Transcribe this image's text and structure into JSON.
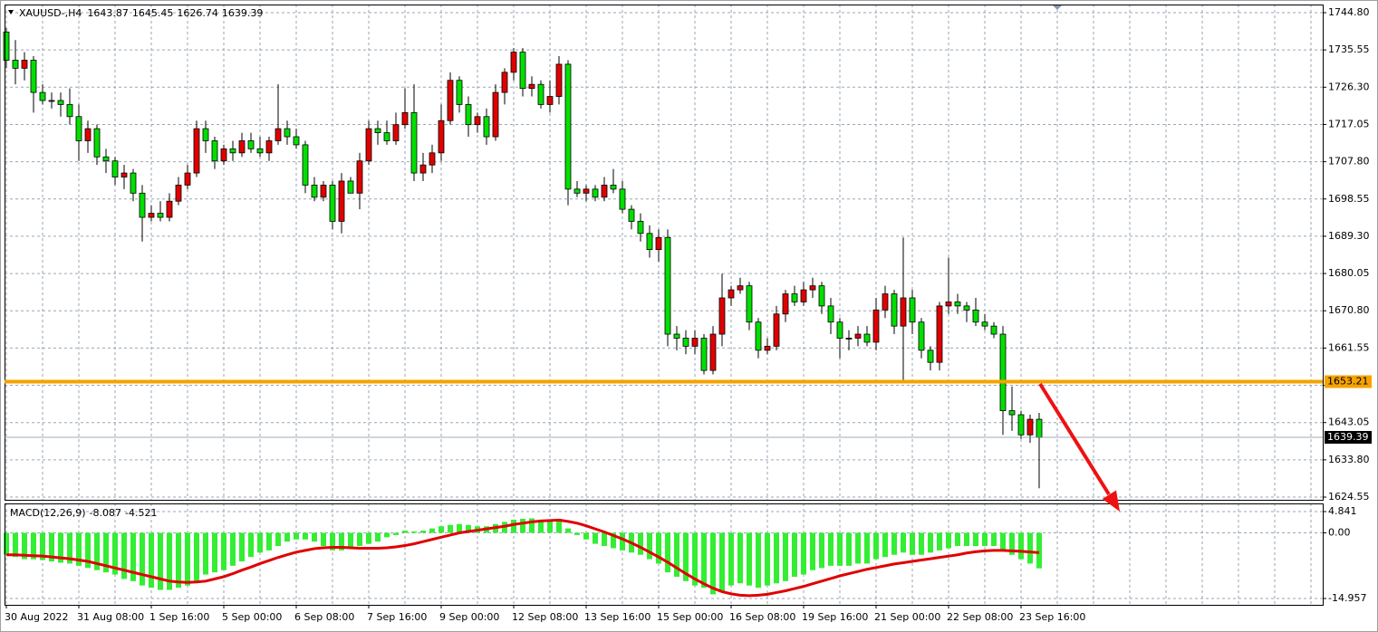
{
  "chart_data": [
    {
      "type": "candlestick",
      "title": "XAUUSD-,H4",
      "categories": [
        "30 Aug 2022",
        null,
        null,
        null,
        null,
        null,
        null,
        null,
        "31 Aug 08:00",
        null,
        null,
        null,
        null,
        null,
        null,
        null,
        "1 Sep 16:00",
        null,
        null,
        null,
        null,
        null,
        null,
        null,
        "5 Sep 00:00",
        null,
        null,
        null,
        null,
        null,
        null,
        null,
        "6 Sep 08:00",
        null,
        null,
        null,
        null,
        null,
        null,
        null,
        "7 Sep 16:00",
        null,
        null,
        null,
        null,
        null,
        null,
        null,
        "9 Sep 00:00",
        null,
        null,
        null,
        null,
        null,
        null,
        null,
        "12 Sep 08:00",
        null,
        null,
        null,
        null,
        null,
        null,
        null,
        "13 Sep 16:00",
        null,
        null,
        null,
        null,
        null,
        null,
        null,
        "15 Sep 00:00",
        null,
        null,
        null,
        null,
        null,
        null,
        null,
        "16 Sep 08:00",
        null,
        null,
        null,
        null,
        null,
        null,
        null,
        "19 Sep 16:00",
        null,
        null,
        null,
        null,
        null,
        null,
        null,
        "21 Sep 00:00",
        null,
        null,
        null,
        null,
        null,
        null,
        null,
        "22 Sep 08:00",
        null,
        null,
        null,
        null,
        null,
        null,
        null,
        "23 Sep 16:00",
        null,
        null
      ],
      "open": [
        1740,
        1733,
        1731,
        1733,
        1725,
        1723,
        1723,
        1722,
        1719,
        1713,
        1716,
        1709,
        1708,
        1704,
        1705,
        1700,
        1694,
        1695,
        1694,
        1698,
        1702,
        1705,
        1716,
        1713,
        1708,
        1711,
        1710,
        1713,
        1711,
        1710,
        1713,
        1716,
        1714,
        1712,
        1702,
        1699,
        1702,
        1693,
        1703,
        1700,
        1708,
        1716,
        1715,
        1713,
        1717,
        1720,
        1705,
        1707,
        1710,
        1718,
        1728,
        1722,
        1717,
        1719,
        1714,
        1725,
        1730,
        1735,
        1726,
        1727,
        1722,
        1724,
        1732,
        1701,
        1700,
        1701,
        1699,
        1702,
        1701,
        1696,
        1693,
        1690,
        1686,
        1689,
        1665,
        1664,
        1662,
        1664,
        1656,
        1665,
        1674,
        1676,
        1677,
        1668,
        1661,
        1662,
        1670,
        1675,
        1673,
        1676,
        1677,
        1672,
        1668,
        1664,
        1664,
        1665,
        1663,
        1671,
        1675,
        1667,
        1674,
        1668,
        1661,
        1658,
        1672,
        1673,
        1672,
        1671,
        1668,
        1667,
        1665,
        1646,
        1645,
        1640,
        1643.87
      ],
      "high": [
        1741,
        1738,
        1735,
        1734,
        1727,
        1725,
        1725,
        1726,
        1722,
        1718,
        1717,
        1711,
        1709,
        1707,
        1706,
        1702,
        1697,
        1698,
        1700,
        1704,
        1707,
        1718,
        1718,
        1714,
        1712,
        1713,
        1715,
        1715,
        1714,
        1714,
        1727,
        1718,
        1716,
        1713,
        1704,
        1703,
        1703,
        1705,
        1704,
        1710,
        1718,
        1718,
        1718,
        1720,
        1726,
        1727,
        1710,
        1712,
        1722,
        1730,
        1729,
        1724,
        1720,
        1721,
        1727,
        1731,
        1736,
        1736,
        1729,
        1728,
        1728,
        1734,
        1733,
        1703,
        1702,
        1702,
        1704,
        1706,
        1703,
        1697,
        1695,
        1692,
        1691,
        1691,
        1667,
        1666,
        1666,
        1665,
        1667,
        1680,
        1677,
        1679,
        1678,
        1669,
        1664,
        1672,
        1676,
        1677,
        1678,
        1679,
        1678,
        1674,
        1669,
        1666,
        1667,
        1667,
        1674,
        1677,
        1676,
        1689,
        1676,
        1669,
        1662,
        1673,
        1684,
        1675,
        1673,
        1674,
        1670,
        1668,
        1667,
        1652,
        1646,
        1645,
        1645.45
      ],
      "low": [
        1731,
        1727,
        1728,
        1720,
        1722,
        1721,
        1719,
        1717,
        1708,
        1710,
        1707,
        1705,
        1702,
        1701,
        1698,
        1688,
        1693,
        1693,
        1693,
        1697,
        1701,
        1704,
        1710,
        1706,
        1707,
        1708,
        1709,
        1710,
        1709,
        1708,
        1712,
        1712,
        1711,
        1700,
        1698,
        1698,
        1691,
        1690,
        1700,
        1696,
        1707,
        1712,
        1712,
        1712,
        1716,
        1703,
        1703,
        1705,
        1708,
        1717,
        1720,
        1714,
        1715,
        1712,
        1713,
        1722,
        1728,
        1724,
        1724,
        1721,
        1720,
        1722,
        1697,
        1699,
        1698,
        1698,
        1698,
        1700,
        1695,
        1691,
        1688,
        1684,
        1683,
        1662,
        1661,
        1660,
        1660,
        1655,
        1655,
        1662,
        1672,
        1675,
        1666,
        1659,
        1660,
        1661,
        1668,
        1672,
        1672,
        1674,
        1670,
        1665,
        1659,
        1661,
        1662,
        1662,
        1661,
        1669,
        1665,
        1653,
        1665,
        1659,
        1656,
        1656,
        1670,
        1670,
        1668,
        1667,
        1666,
        1664,
        1640,
        1641,
        1639,
        1638,
        1626.74
      ],
      "close": [
        1733,
        1731,
        1733,
        1725,
        1723,
        1723,
        1722,
        1719,
        1713,
        1716,
        1709,
        1708,
        1704,
        1705,
        1700,
        1694,
        1695,
        1694,
        1698,
        1702,
        1705,
        1716,
        1713,
        1708,
        1711,
        1710,
        1713,
        1711,
        1710,
        1713,
        1716,
        1714,
        1712,
        1702,
        1699,
        1702,
        1693,
        1703,
        1700,
        1708,
        1716,
        1715,
        1713,
        1717,
        1720,
        1705,
        1707,
        1710,
        1718,
        1728,
        1722,
        1717,
        1719,
        1714,
        1725,
        1730,
        1735,
        1726,
        1727,
        1722,
        1724,
        1732,
        1701,
        1700,
        1701,
        1699,
        1702,
        1701,
        1696,
        1693,
        1690,
        1686,
        1689,
        1665,
        1664,
        1662,
        1664,
        1656,
        1665,
        1674,
        1676,
        1677,
        1668,
        1661,
        1662,
        1670,
        1675,
        1673,
        1676,
        1677,
        1672,
        1668,
        1664,
        1664,
        1665,
        1663,
        1671,
        1675,
        1667,
        1674,
        1668,
        1661,
        1658,
        1672,
        1673,
        1672,
        1671,
        1668,
        1667,
        1665,
        1646,
        1645,
        1640,
        1643.87,
        1639.39
      ],
      "up_color": "#e00000",
      "down_color": "#00e000",
      "ylim": [
        1623.88,
        1746.82
      ],
      "yticks": [
        {
          "value": 1744.8,
          "label": "1744.80"
        },
        1735.55,
        {
          "value": 1726.3,
          "label": "1726.30"
        },
        1717.05,
        {
          "value": 1707.8,
          "label": "1707.80"
        },
        1698.55,
        {
          "value": 1689.3,
          "label": "1689.30"
        },
        1680.05,
        {
          "value": 1670.8,
          "label": "1670.80"
        },
        1661.55,
        {
          "value": 1652.3,
          "label": "1652.30"
        },
        1643.05,
        {
          "value": 1633.8,
          "label": "1633.80"
        },
        1624.55
      ],
      "grid": true,
      "hline": 1653.21,
      "hline_color": "#f5a300"
    },
    {
      "type": "macd",
      "title": "MACD(12,26,9)",
      "histogram": {
        "color": "#33ee33",
        "values": [
          -5,
          -5.5,
          -6,
          -6,
          -6.2,
          -6.5,
          -6.8,
          -7,
          -7.5,
          -8,
          -8.5,
          -9,
          -9.5,
          -10.5,
          -11,
          -12,
          -12.5,
          -13,
          -13,
          -12.5,
          -12,
          -11,
          -9.5,
          -9,
          -8.5,
          -7.5,
          -6.5,
          -5.5,
          -4.5,
          -4,
          -3,
          -2,
          -1.5,
          -1.5,
          -2,
          -3,
          -4,
          -4,
          -3.5,
          -3,
          -2.5,
          -2,
          -1,
          -0.5,
          0.5,
          0.3,
          0.5,
          1,
          1.5,
          1.8,
          2,
          1.8,
          1.5,
          1.5,
          2,
          2.5,
          3,
          3.2,
          3.3,
          3,
          3,
          3.2,
          1,
          -0.5,
          -1.5,
          -2.5,
          -3,
          -3.5,
          -4,
          -4.5,
          -5,
          -6,
          -7,
          -9,
          -10,
          -11,
          -12,
          -12.5,
          -14,
          -13.5,
          -12,
          -11.5,
          -12,
          -12.5,
          -12,
          -11.5,
          -11,
          -10,
          -9.5,
          -8.5,
          -8,
          -7.5,
          -7.5,
          -7.5,
          -7,
          -7,
          -6,
          -5.5,
          -5,
          -4.5,
          -5,
          -5,
          -4.5,
          -4,
          -3.5,
          -3,
          -3,
          -3,
          -3,
          -3,
          -4,
          -5,
          -6,
          -7,
          -8.087
        ]
      },
      "signal": {
        "color": "#e00000",
        "values": [
          -5,
          -5,
          -5.1,
          -5.2,
          -5.3,
          -5.5,
          -5.7,
          -5.9,
          -6.2,
          -6.5,
          -7,
          -7.5,
          -8,
          -8.5,
          -9,
          -9.5,
          -10,
          -10.5,
          -11,
          -11.2,
          -11.3,
          -11.2,
          -11,
          -10.5,
          -10,
          -9.3,
          -8.5,
          -7.8,
          -7,
          -6.3,
          -5.6,
          -5,
          -4.4,
          -4,
          -3.6,
          -3.4,
          -3.3,
          -3.3,
          -3.4,
          -3.5,
          -3.5,
          -3.5,
          -3.4,
          -3.2,
          -2.9,
          -2.5,
          -2,
          -1.5,
          -1,
          -0.5,
          0,
          0.3,
          0.6,
          0.9,
          1.2,
          1.5,
          1.9,
          2.2,
          2.5,
          2.7,
          2.8,
          2.9,
          2.6,
          2.2,
          1.6,
          0.9,
          0.2,
          -0.6,
          -1.4,
          -2.3,
          -3.3,
          -4.4,
          -5.5,
          -6.7,
          -8,
          -9.3,
          -10.5,
          -11.6,
          -12.6,
          -13.4,
          -13.9,
          -14.2,
          -14.3,
          -14.2,
          -14,
          -13.6,
          -13.2,
          -12.7,
          -12.2,
          -11.6,
          -11,
          -10.4,
          -9.8,
          -9.3,
          -8.8,
          -8.3,
          -7.9,
          -7.5,
          -7.1,
          -6.8,
          -6.5,
          -6.2,
          -5.9,
          -5.6,
          -5.3,
          -5,
          -4.6,
          -4.3,
          -4.1,
          -4,
          -4,
          -4.1,
          -4.2,
          -4.35,
          -4.521
        ]
      },
      "ylim": [
        -16.4,
        6.7
      ],
      "yticks": [
        4.841,
        {
          "value": 0,
          "label": "0.00"
        },
        -14.957
      ],
      "grid": true
    }
  ]
}
